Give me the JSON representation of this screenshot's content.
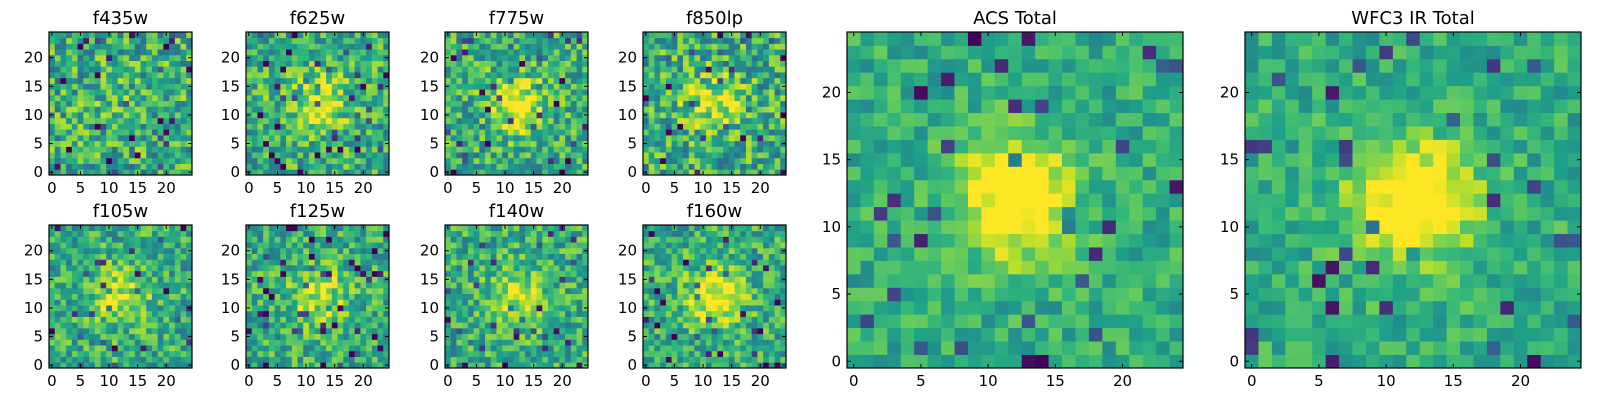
{
  "colors": {
    "colormap": "viridis",
    "background": "#ffffff",
    "frame": "#000000"
  },
  "chart_data": [
    {
      "type": "heatmap",
      "title": "f435w",
      "x_ticks": [
        "0",
        "5",
        "10",
        "15",
        "20"
      ],
      "y_ticks": [
        "0",
        "5",
        "10",
        "15",
        "20"
      ],
      "xlim": [
        -0.5,
        24.5
      ],
      "ylim": [
        -0.5,
        24.5
      ],
      "grid": false,
      "rows": 25,
      "cols": 25,
      "seed": 11,
      "peak": 0.05,
      "sigma": 4.0,
      "noise": 0.55,
      "contrast": 1.0
    },
    {
      "type": "heatmap",
      "title": "f625w",
      "x_ticks": [
        "0",
        "5",
        "10",
        "15",
        "20"
      ],
      "y_ticks": [
        "0",
        "5",
        "10",
        "15",
        "20"
      ],
      "xlim": [
        -0.5,
        24.5
      ],
      "ylim": [
        -0.5,
        24.5
      ],
      "grid": false,
      "rows": 25,
      "cols": 25,
      "seed": 23,
      "peak": 0.3,
      "sigma": 4.0,
      "noise": 0.5,
      "contrast": 1.0
    },
    {
      "type": "heatmap",
      "title": "f775w",
      "x_ticks": [
        "0",
        "5",
        "10",
        "15",
        "20"
      ],
      "y_ticks": [
        "0",
        "5",
        "10",
        "15",
        "20"
      ],
      "xlim": [
        -0.5,
        24.5
      ],
      "ylim": [
        -0.5,
        24.5
      ],
      "grid": false,
      "rows": 25,
      "cols": 25,
      "seed": 37,
      "peak": 0.45,
      "sigma": 3.2,
      "noise": 0.5,
      "contrast": 1.0
    },
    {
      "type": "heatmap",
      "title": "f850lp",
      "x_ticks": [
        "0",
        "5",
        "10",
        "15",
        "20"
      ],
      "y_ticks": [
        "0",
        "5",
        "10",
        "15",
        "20"
      ],
      "xlim": [
        -0.5,
        24.5
      ],
      "ylim": [
        -0.5,
        24.5
      ],
      "grid": false,
      "rows": 25,
      "cols": 25,
      "seed": 41,
      "peak": 0.3,
      "sigma": 3.5,
      "noise": 0.55,
      "contrast": 1.0
    },
    {
      "type": "heatmap",
      "title": "f105w",
      "x_ticks": [
        "0",
        "5",
        "10",
        "15",
        "20"
      ],
      "y_ticks": [
        "0",
        "5",
        "10",
        "15",
        "20"
      ],
      "xlim": [
        -0.5,
        24.5
      ],
      "ylim": [
        -0.5,
        24.5
      ],
      "grid": false,
      "rows": 25,
      "cols": 25,
      "seed": 53,
      "peak": 0.3,
      "sigma": 3.5,
      "noise": 0.45,
      "contrast": 1.0
    },
    {
      "type": "heatmap",
      "title": "f125w",
      "x_ticks": [
        "0",
        "5",
        "10",
        "15",
        "20"
      ],
      "y_ticks": [
        "0",
        "5",
        "10",
        "15",
        "20"
      ],
      "xlim": [
        -0.5,
        24.5
      ],
      "ylim": [
        -0.5,
        24.5
      ],
      "grid": false,
      "rows": 25,
      "cols": 25,
      "seed": 67,
      "peak": 0.3,
      "sigma": 3.5,
      "noise": 0.45,
      "contrast": 1.0
    },
    {
      "type": "heatmap",
      "title": "f140w",
      "x_ticks": [
        "0",
        "5",
        "10",
        "15",
        "20"
      ],
      "y_ticks": [
        "0",
        "5",
        "10",
        "15",
        "20"
      ],
      "xlim": [
        -0.5,
        24.5
      ],
      "ylim": [
        -0.5,
        24.5
      ],
      "grid": false,
      "rows": 25,
      "cols": 25,
      "seed": 79,
      "peak": 0.3,
      "sigma": 3.5,
      "noise": 0.45,
      "contrast": 1.0
    },
    {
      "type": "heatmap",
      "title": "f160w",
      "x_ticks": [
        "0",
        "5",
        "10",
        "15",
        "20"
      ],
      "y_ticks": [
        "0",
        "5",
        "10",
        "15",
        "20"
      ],
      "xlim": [
        -0.5,
        24.5
      ],
      "ylim": [
        -0.5,
        24.5
      ],
      "grid": false,
      "rows": 25,
      "cols": 25,
      "seed": 83,
      "peak": 0.4,
      "sigma": 3.5,
      "noise": 0.45,
      "contrast": 1.0
    },
    {
      "type": "heatmap",
      "title": "ACS Total",
      "x_ticks": [
        "0",
        "5",
        "10",
        "15",
        "20"
      ],
      "y_ticks": [
        "0",
        "5",
        "10",
        "15",
        "20"
      ],
      "xlim": [
        -0.5,
        24.5
      ],
      "ylim": [
        -0.5,
        24.5
      ],
      "grid": false,
      "rows": 25,
      "cols": 25,
      "seed": 97,
      "peak": 0.55,
      "sigma": 3.0,
      "noise": 0.3,
      "contrast": 0.85
    },
    {
      "type": "heatmap",
      "title": "WFC3 IR Total",
      "x_ticks": [
        "0",
        "5",
        "10",
        "15",
        "20"
      ],
      "y_ticks": [
        "0",
        "5",
        "10",
        "15",
        "20"
      ],
      "xlim": [
        -0.5,
        24.5
      ],
      "ylim": [
        -0.5,
        24.5
      ],
      "grid": false,
      "rows": 25,
      "cols": 25,
      "seed": 101,
      "peak": 0.55,
      "sigma": 3.2,
      "noise": 0.3,
      "contrast": 0.85
    }
  ]
}
